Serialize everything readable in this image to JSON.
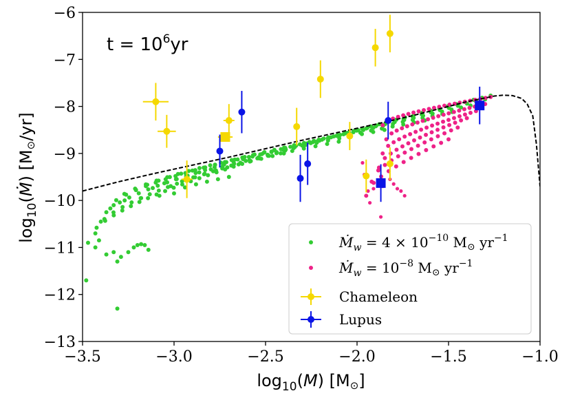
{
  "chart_data": {
    "type": "scatter",
    "title": "",
    "annotation": "t = 10^6yr",
    "annotation_base": "t = 10",
    "annotation_exp": "6",
    "annotation_unit": "yr",
    "xlabel": "log10(M) [M⊙]",
    "ylabel": "log10(Ṁ) [M⊙/yr]",
    "xlim": [
      -3.5,
      -1.0
    ],
    "ylim": [
      -13,
      -6
    ],
    "xticks": [
      -3.5,
      -3.0,
      -2.5,
      -2.0,
      -1.5,
      -1.0
    ],
    "xtick_labels": [
      "−3.5",
      "−3.0",
      "−2.5",
      "−2.0",
      "−1.5",
      "−1.0"
    ],
    "yticks": [
      -13,
      -12,
      -11,
      -10,
      -9,
      -8,
      -7,
      -6
    ],
    "ytick_labels": [
      "−13",
      "−12",
      "−11",
      "−10",
      "−9",
      "−8",
      "−7",
      "−6"
    ],
    "grid": false,
    "legend_position": "lower-right",
    "colors": {
      "wind_low": "#33cc33",
      "wind_high": "#ee2288",
      "chameleon": "#f5d800",
      "lupus": "#0a14e6",
      "dashed": "#000000"
    },
    "legend": [
      {
        "name": "Ṁw = 4 × 10^−10 M⊙ yr^−1",
        "marker": "dot",
        "color": "#33cc33"
      },
      {
        "name": "Ṁw = 10^−8 M⊙ yr^−1",
        "marker": "dot",
        "color": "#ee2288"
      },
      {
        "name": "Chameleon",
        "marker": "errorbar",
        "color": "#f5d800"
      },
      {
        "name": "Lupus",
        "marker": "errorbar",
        "color": "#0a14e6"
      }
    ],
    "dashed_curve": {
      "x": [
        -3.5,
        -3.3,
        -3.1,
        -2.9,
        -2.7,
        -2.5,
        -2.3,
        -2.1,
        -1.9,
        -1.7,
        -1.5,
        -1.4,
        -1.3,
        -1.25,
        -1.2,
        -1.15,
        -1.1,
        -1.07,
        -1.04,
        -1.02,
        -1.0
      ],
      "y": [
        -9.8,
        -9.6,
        -9.42,
        -9.25,
        -9.08,
        -8.9,
        -8.72,
        -8.55,
        -8.38,
        -8.2,
        -8.0,
        -7.9,
        -7.82,
        -7.78,
        -7.76,
        -7.77,
        -7.83,
        -7.95,
        -8.2,
        -8.8,
        -9.7
      ]
    },
    "wind_low_tracks": [
      {
        "x_start": -3.47,
        "x_end": -1.27,
        "y_start": -10.9,
        "y_end": -7.77,
        "n": 48
      },
      {
        "x_start": -3.43,
        "x_end": -1.3,
        "y_start": -10.7,
        "y_end": -7.85,
        "n": 44
      },
      {
        "x_start": -3.4,
        "x_end": -1.38,
        "y_start": -10.45,
        "y_end": -7.98,
        "n": 40
      },
      {
        "x_start": -3.37,
        "x_end": -1.48,
        "y_start": -10.25,
        "y_end": -8.12,
        "n": 36
      },
      {
        "x_start": -3.33,
        "x_end": -1.63,
        "y_start": -10.1,
        "y_end": -8.3,
        "n": 30
      },
      {
        "x_start": -3.27,
        "x_end": -1.85,
        "y_start": -10.0,
        "y_end": -8.5,
        "n": 24
      },
      {
        "x_start": -3.18,
        "x_end": -2.1,
        "y_start": -9.95,
        "y_end": -8.75,
        "n": 18
      },
      {
        "x_start": -3.08,
        "x_end": -2.4,
        "y_start": -9.9,
        "y_end": -9.0,
        "n": 12
      },
      {
        "x_start": -3.0,
        "x_end": -2.7,
        "y_start": -9.85,
        "y_end": -9.5,
        "n": 6
      }
    ],
    "wind_low_extra": {
      "x": [
        -3.48,
        -3.43,
        -3.41,
        -3.37,
        -3.33,
        -3.31,
        -3.29,
        -3.25,
        -3.22,
        -3.2,
        -3.18,
        -3.16,
        -3.14,
        -3.31
      ],
      "y": [
        -11.7,
        -11.0,
        -10.85,
        -11.15,
        -11.1,
        -11.3,
        -11.2,
        -11.1,
        -11.0,
        -10.95,
        -10.93,
        -10.95,
        -11.05,
        -12.3
      ]
    },
    "wind_high_tracks": [
      {
        "x_start": -1.86,
        "x_end": -1.27,
        "y_start": -8.4,
        "y_end": -7.8,
        "n": 22
      },
      {
        "x_start": -1.84,
        "x_end": -1.3,
        "y_start": -8.7,
        "y_end": -7.95,
        "n": 20
      },
      {
        "x_start": -1.86,
        "x_end": -1.35,
        "y_start": -9.0,
        "y_end": -8.1,
        "n": 18
      },
      {
        "x_start": -1.88,
        "x_end": -1.4,
        "y_start": -9.3,
        "y_end": -8.25,
        "n": 16
      },
      {
        "x_start": -1.92,
        "x_end": -1.45,
        "y_start": -9.6,
        "y_end": -8.45,
        "n": 14
      },
      {
        "x_start": -1.95,
        "x_end": -1.5,
        "y_start": -9.9,
        "y_end": -8.7,
        "n": 12
      }
    ],
    "wind_high_extra": {
      "x": [
        -1.97,
        -1.96,
        -1.94,
        -1.93,
        -1.91,
        -1.88,
        -1.86,
        -1.82,
        -1.8,
        -1.78,
        -1.76,
        -1.74,
        -1.87
      ],
      "y": [
        -9.2,
        -9.45,
        -9.8,
        -10.05,
        -9.75,
        -9.6,
        -9.7,
        -9.55,
        -9.65,
        -9.75,
        -9.8,
        -9.9,
        -10.35
      ]
    },
    "chameleon": [
      {
        "x": -3.1,
        "y": -7.9,
        "xerr": 0.07,
        "yerr": 0.4,
        "marker": "circle"
      },
      {
        "x": -3.04,
        "y": -8.53,
        "xerr": 0.05,
        "yerr": 0.35,
        "marker": "circle"
      },
      {
        "x": -2.93,
        "y": -9.55,
        "xerr": 0.03,
        "yerr": 0.4,
        "marker": "circle"
      },
      {
        "x": -2.7,
        "y": -8.3,
        "xerr": 0.03,
        "yerr": 0.35,
        "marker": "circle"
      },
      {
        "x": -2.72,
        "y": -8.65,
        "xerr": 0.04,
        "yerr": 0.0,
        "marker": "square"
      },
      {
        "x": -2.33,
        "y": -8.43,
        "xerr": 0.0,
        "yerr": 0.4,
        "marker": "circle"
      },
      {
        "x": -2.2,
        "y": -7.42,
        "xerr": 0.0,
        "yerr": 0.4,
        "marker": "circle"
      },
      {
        "x": -2.04,
        "y": -8.63,
        "xerr": 0.0,
        "yerr": 0.3,
        "marker": "circle"
      },
      {
        "x": -1.9,
        "y": -6.75,
        "xerr": 0.0,
        "yerr": 0.4,
        "marker": "circle"
      },
      {
        "x": -1.82,
        "y": -6.45,
        "xerr": 0.0,
        "yerr": 0.4,
        "marker": "circle"
      },
      {
        "x": -1.95,
        "y": -9.48,
        "xerr": 0.0,
        "yerr": 0.35,
        "marker": "circle"
      },
      {
        "x": -1.82,
        "y": -9.22,
        "xerr": 0.0,
        "yerr": 0.35,
        "marker": "circle"
      }
    ],
    "lupus": [
      {
        "x": -2.75,
        "y": -8.95,
        "xerr": 0.0,
        "yerr": 0.35,
        "marker": "circle"
      },
      {
        "x": -2.63,
        "y": -8.12,
        "xerr": 0.0,
        "yerr": 0.45,
        "marker": "circle"
      },
      {
        "x": -2.31,
        "y": -9.53,
        "xerr": 0.0,
        "yerr": 0.5,
        "marker": "circle"
      },
      {
        "x": -2.27,
        "y": -9.22,
        "xerr": 0.0,
        "yerr": 0.45,
        "marker": "circle"
      },
      {
        "x": -1.83,
        "y": -8.3,
        "xerr": 0.0,
        "yerr": 0.4,
        "marker": "circle"
      },
      {
        "x": -1.87,
        "y": -9.63,
        "xerr": 0.0,
        "yerr": 0.4,
        "marker": "square"
      },
      {
        "x": -1.33,
        "y": -7.98,
        "xerr": 0.0,
        "yerr": 0.4,
        "marker": "square"
      }
    ]
  }
}
